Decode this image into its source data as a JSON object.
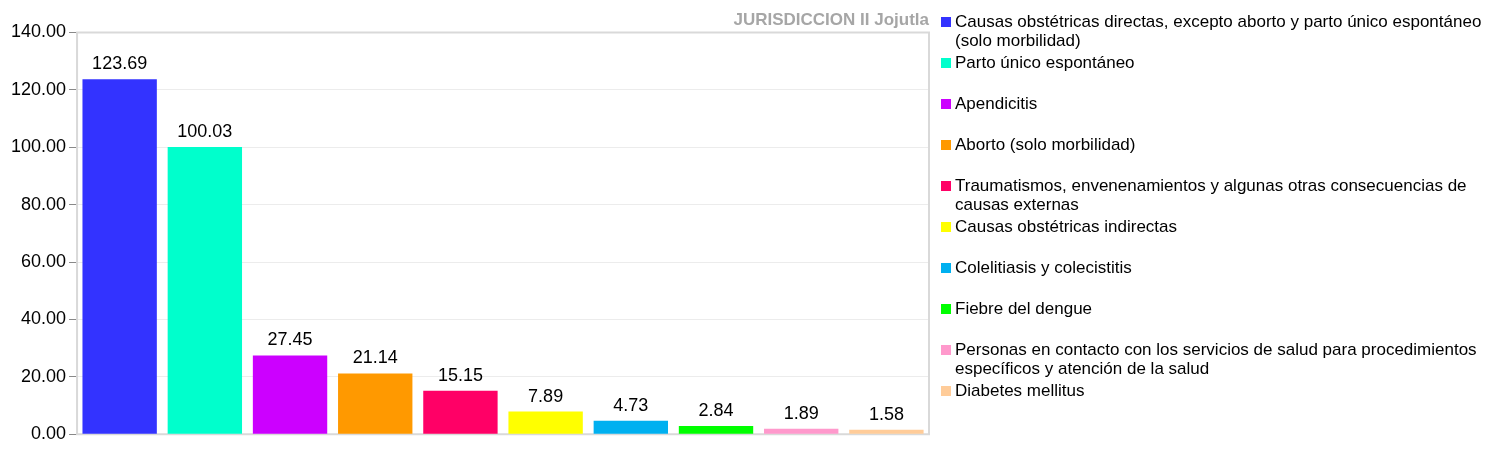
{
  "chart_data": {
    "type": "bar",
    "title": "JURISDICCION II Jojutla",
    "stacked": true,
    "categories": [
      null,
      null,
      null,
      null,
      null,
      null,
      null,
      null,
      null,
      null
    ],
    "series": [
      {
        "name": "Causas obstétricas directas, excepto aborto y parto único espontáneo (solo morbilidad)",
        "color": "#3333ff",
        "values": [
          123.69,
          null,
          null,
          null,
          null,
          null,
          null,
          null,
          null,
          null
        ]
      },
      {
        "name": "Parto único espontáneo",
        "color": "#00ffcc",
        "values": [
          null,
          100.03,
          null,
          null,
          null,
          null,
          null,
          null,
          null,
          null
        ]
      },
      {
        "name": "Apendicitis",
        "color": "#cc00ff",
        "values": [
          null,
          null,
          27.45,
          null,
          null,
          null,
          null,
          null,
          null,
          null
        ]
      },
      {
        "name": "Aborto (solo morbilidad)",
        "color": "#ff9900",
        "values": [
          null,
          null,
          null,
          21.14,
          null,
          null,
          null,
          null,
          null,
          null
        ]
      },
      {
        "name": "Traumatismos, envenenamientos y algunas otras consecuencias de causas externas",
        "color": "#ff0066",
        "values": [
          null,
          null,
          null,
          null,
          15.15,
          null,
          null,
          null,
          null,
          null
        ]
      },
      {
        "name": "Causas obstétricas indirectas",
        "color": "#ffff00",
        "values": [
          null,
          null,
          null,
          null,
          null,
          7.89,
          null,
          null,
          null,
          null
        ]
      },
      {
        "name": "Colelitiasis y colecistitis",
        "color": "#00b0f0",
        "values": [
          null,
          null,
          null,
          null,
          null,
          null,
          4.73,
          null,
          null,
          null
        ]
      },
      {
        "name": "Fiebre del dengue",
        "color": "#00ff00",
        "values": [
          null,
          null,
          null,
          null,
          null,
          null,
          null,
          2.84,
          null,
          null
        ]
      },
      {
        "name": "Personas en contacto con los servicios de salud para procedimientos específicos y atención de la salud",
        "color": "#ff99cc",
        "values": [
          null,
          null,
          null,
          null,
          null,
          null,
          null,
          null,
          1.89,
          null
        ]
      },
      {
        "name": "Diabetes mellitus",
        "color": "#ffcc99",
        "values": [
          null,
          null,
          null,
          null,
          null,
          null,
          null,
          null,
          null,
          1.58
        ]
      }
    ],
    "ylim": [
      0,
      140
    ],
    "yticks": [
      {
        "value": 0,
        "label": "0.00"
      },
      {
        "value": 20,
        "label": "20.00"
      },
      {
        "value": 40,
        "label": "40.00"
      },
      {
        "value": 60,
        "label": "60.00"
      },
      {
        "value": 80,
        "label": "80.00"
      },
      {
        "value": 100,
        "label": "100.00"
      },
      {
        "value": 120,
        "label": "120.00"
      },
      {
        "value": 140,
        "label": "140.00"
      }
    ],
    "grid": "y",
    "legend": "right",
    "tick_labels": "y",
    "data_labels": true
  }
}
